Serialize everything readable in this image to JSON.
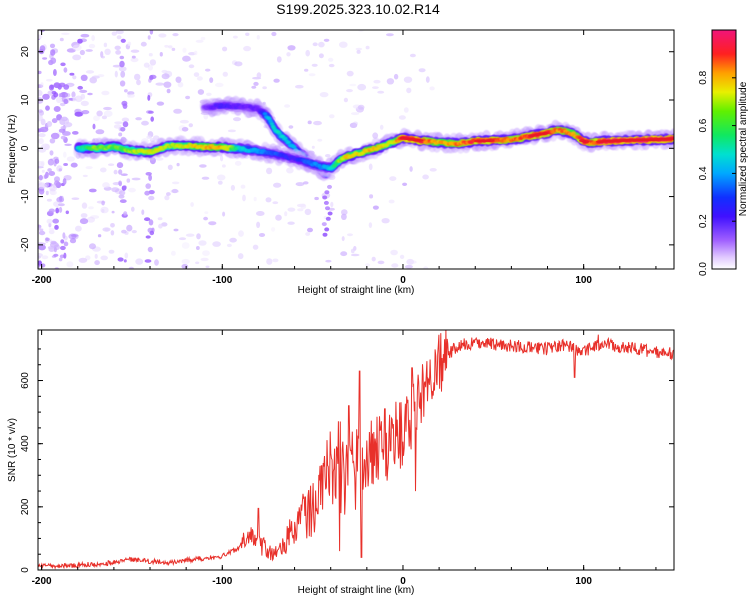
{
  "title": "S199.2025.323.10.02.R14",
  "colors": {
    "snr_line": "#e8302a",
    "ridge_core": "#e81828",
    "colormap": [
      "#ffffff",
      "#e9dcff",
      "#c9a8ff",
      "#9a5cff",
      "#6a1bff",
      "#2a2aff",
      "#00a8ff",
      "#00e8c8",
      "#27e84a",
      "#d8f000",
      "#ffb000",
      "#ff2020",
      "#f0147a"
    ]
  },
  "chart_data": [
    {
      "type": "heatmap",
      "name": "spectrogram",
      "xlabel": "Height of straight line (km)",
      "ylabel": "Frequency (Hz)",
      "xlim": [
        -202,
        150
      ],
      "ylim": [
        -25,
        24.5
      ],
      "xticks": [
        -200,
        -100,
        0,
        100
      ],
      "yticks": [
        -20,
        -10,
        0,
        10,
        20
      ],
      "colorbar": {
        "label": "Normalized spectral amplitude",
        "range": [
          0,
          1
        ],
        "ticks": [
          0.0,
          0.2,
          0.4,
          0.6,
          0.8
        ]
      },
      "main_ridge": {
        "x": [
          -180,
          -170,
          -160,
          -150,
          -140,
          -130,
          -120,
          -110,
          -100,
          -90,
          -80,
          -70,
          -60,
          -50,
          -45,
          -40,
          -35,
          -30,
          -25,
          -20,
          -15,
          -10,
          -5,
          0,
          10,
          20,
          30,
          40,
          50,
          60,
          70,
          80,
          85,
          90,
          95,
          100,
          105,
          110,
          120,
          130,
          140,
          150
        ],
        "y": [
          0,
          0,
          0.3,
          -0.5,
          -0.8,
          0.5,
          0.5,
          0.3,
          0.2,
          -0.1,
          -0.6,
          -1.3,
          -2.2,
          -3.2,
          -3.8,
          -4.1,
          -2.4,
          -1.6,
          -1.1,
          -0.5,
          0,
          0.6,
          1.4,
          2.1,
          1.6,
          1.2,
          1.0,
          1.5,
          1.6,
          1.8,
          2.5,
          3.2,
          3.8,
          3.5,
          2.8,
          1.4,
          1.2,
          1.4,
          1.6,
          1.7,
          1.8,
          2.0
        ],
        "amplitude": [
          0.6,
          0.75,
          0.7,
          0.75,
          0.8,
          0.75,
          0.8,
          0.85,
          0.85,
          0.6,
          0.5,
          0.45,
          0.4,
          0.5,
          0.5,
          0.6,
          0.75,
          0.85,
          0.8,
          0.85,
          0.85,
          0.8,
          0.8,
          1.0,
          0.95,
          0.85,
          0.9,
          0.95,
          0.95,
          0.9,
          0.95,
          0.95,
          0.9,
          0.9,
          0.85,
          1.0,
          0.9,
          1.0,
          1.0,
          1.0,
          1.0,
          1.0
        ]
      },
      "upper_branch": {
        "x": [
          -110,
          -100,
          -90,
          -80,
          -75,
          -70,
          -60,
          -50,
          -42
        ],
        "y": [
          8.5,
          8.8,
          8.7,
          8.2,
          6.5,
          3.5,
          0,
          -3.2,
          -5.5
        ],
        "amplitude": [
          0.3,
          0.4,
          0.35,
          0.35,
          0.55,
          0.6,
          0.55,
          0.45,
          0.5
        ]
      }
    },
    {
      "type": "line",
      "name": "snr",
      "xlabel": "Height of straight line (km)",
      "ylabel": "SNR (10 * v/v)",
      "xlim": [
        -202,
        150
      ],
      "ylim": [
        0,
        760
      ],
      "xticks": [
        -200,
        -100,
        0,
        100
      ],
      "yticks": [
        0,
        200,
        400,
        600
      ],
      "series": [
        {
          "name": "SNR",
          "x": [
            -202,
            -180,
            -160,
            -150,
            -130,
            -120,
            -100,
            -90,
            -85,
            -80,
            -75,
            -70,
            -65,
            -60,
            -55,
            -50,
            -45,
            -40,
            -35,
            -30,
            -25,
            -20,
            -15,
            -10,
            -5,
            0,
            5,
            10,
            15,
            20,
            25,
            30,
            40,
            50,
            60,
            70,
            80,
            90,
            95,
            100,
            110,
            120,
            130,
            140,
            150
          ],
          "y": [
            8,
            12,
            20,
            30,
            20,
            28,
            40,
            70,
            110,
            75,
            60,
            45,
            90,
            140,
            170,
            190,
            250,
            320,
            330,
            300,
            350,
            330,
            400,
            380,
            430,
            420,
            480,
            560,
            600,
            640,
            680,
            710,
            720,
            715,
            710,
            705,
            700,
            715,
            700,
            690,
            720,
            705,
            700,
            690,
            685
          ]
        }
      ],
      "spikes": [
        {
          "x": -80,
          "y": 195
        },
        {
          "x": -62,
          "y": 125
        },
        {
          "x": -45,
          "y": 330
        },
        {
          "x": -40,
          "y": 370
        },
        {
          "x": -30,
          "y": 520
        },
        {
          "x": -24,
          "y": 630
        },
        {
          "x": -18,
          "y": 340
        },
        {
          "x": -10,
          "y": 510
        },
        {
          "x": 5,
          "y": 640
        },
        {
          "x": 108,
          "y": 745
        }
      ],
      "dips": [
        {
          "x": -35,
          "y": 60
        },
        {
          "x": -23,
          "y": 40
        },
        {
          "x": 7,
          "y": 250
        },
        {
          "x": 95,
          "y": 610
        }
      ]
    }
  ]
}
